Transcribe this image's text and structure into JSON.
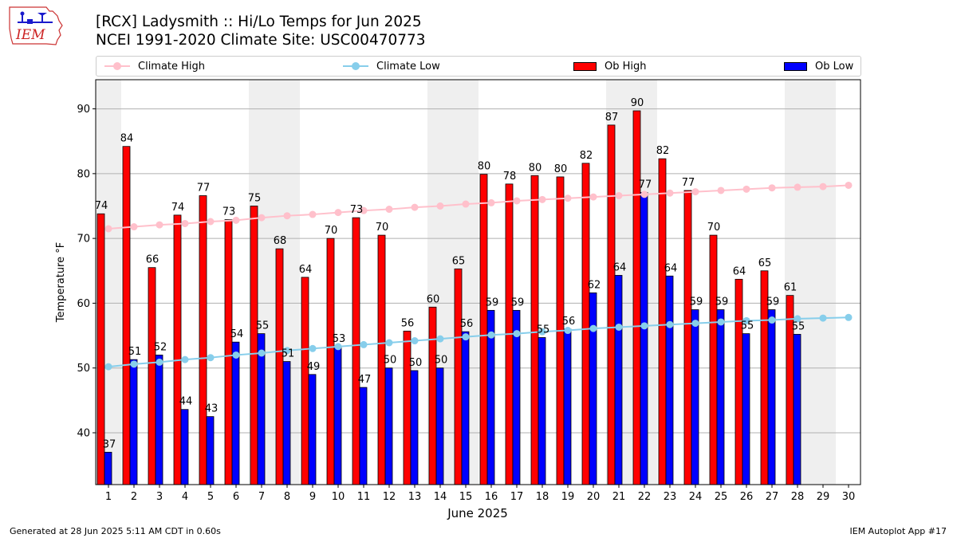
{
  "header": {
    "title_line1": "[RCX] Ladysmith :: Hi/Lo Temps for Jun 2025",
    "title_line2": "NCEI 1991-2020 Climate Site: USC00470773",
    "logo_text": "IEM"
  },
  "legend": {
    "climate_high": "Climate High",
    "climate_low": "Climate Low",
    "ob_high": "Ob High",
    "ob_low": "Ob Low"
  },
  "footer": {
    "generated": "Generated at 28 Jun 2025 5:11 AM CDT in 0.60s",
    "app": "IEM Autoplot App #17"
  },
  "chart_data": {
    "type": "bar",
    "xlabel": "June 2025",
    "ylabel": "Temperature °F",
    "ylim": [
      32,
      94.5
    ],
    "yticks": [
      40,
      50,
      60,
      70,
      80,
      90
    ],
    "grid": true,
    "legend_position": "top",
    "categories": [
      1,
      2,
      3,
      4,
      5,
      6,
      7,
      8,
      9,
      10,
      11,
      12,
      13,
      14,
      15,
      16,
      17,
      18,
      19,
      20,
      21,
      22,
      23,
      24,
      25,
      26,
      27,
      28,
      29,
      30
    ],
    "weekend_shading_days": [
      1,
      7,
      8,
      14,
      15,
      21,
      22,
      28,
      29
    ],
    "series": [
      {
        "name": "Ob High",
        "kind": "bar",
        "color": "#ff0000",
        "values": [
          74,
          84,
          66,
          74,
          77,
          73,
          75,
          68,
          64,
          70,
          73,
          70,
          56,
          60,
          65,
          80,
          78,
          80,
          80,
          82,
          87,
          90,
          82,
          77,
          70,
          64,
          65,
          61,
          null,
          null
        ],
        "plotted": [
          73.8,
          84.2,
          65.5,
          73.6,
          76.6,
          72.9,
          75.0,
          68.4,
          64.0,
          70.0,
          73.2,
          70.5,
          55.7,
          59.4,
          65.3,
          79.9,
          78.4,
          79.7,
          79.5,
          81.6,
          87.5,
          89.7,
          82.3,
          77.4,
          70.5,
          63.7,
          65.0,
          61.2,
          null,
          null
        ]
      },
      {
        "name": "Ob Low",
        "kind": "bar",
        "color": "#0000ff",
        "values": [
          37,
          51,
          52,
          44,
          43,
          54,
          55,
          51,
          49,
          53,
          47,
          50,
          50,
          50,
          56,
          59,
          59,
          55,
          56,
          62,
          64,
          77,
          64,
          59,
          59,
          55,
          59,
          55,
          null,
          null
        ],
        "plotted": [
          37.0,
          51.3,
          52.0,
          43.6,
          42.5,
          54.0,
          55.3,
          51.0,
          49.0,
          53.3,
          47.0,
          50.0,
          49.6,
          50.0,
          55.6,
          58.9,
          58.9,
          54.7,
          56.0,
          61.6,
          64.3,
          77.1,
          64.2,
          59.0,
          59.0,
          55.3,
          59.0,
          55.2,
          null,
          null
        ]
      },
      {
        "name": "Climate High",
        "kind": "line",
        "color": "#ffc0cb",
        "values": [
          71.5,
          71.8,
          72.1,
          72.3,
          72.6,
          72.8,
          73.2,
          73.5,
          73.7,
          74.0,
          74.3,
          74.5,
          74.8,
          75.0,
          75.3,
          75.5,
          75.8,
          76.0,
          76.2,
          76.4,
          76.6,
          76.8,
          77.0,
          77.2,
          77.4,
          77.6,
          77.8,
          77.9,
          78.0,
          78.2
        ]
      },
      {
        "name": "Climate Low",
        "kind": "line",
        "color": "#87ceeb",
        "values": [
          50.2,
          50.6,
          50.9,
          51.3,
          51.6,
          52.0,
          52.3,
          52.7,
          53.0,
          53.3,
          53.6,
          53.9,
          54.2,
          54.5,
          54.8,
          55.1,
          55.3,
          55.6,
          55.8,
          56.1,
          56.3,
          56.5,
          56.7,
          56.9,
          57.1,
          57.3,
          57.4,
          57.6,
          57.7,
          57.8
        ]
      }
    ]
  }
}
